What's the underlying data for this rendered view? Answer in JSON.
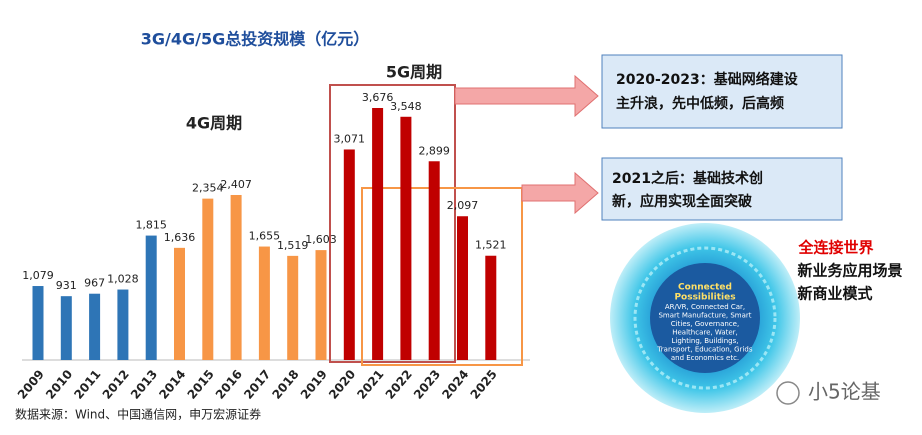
{
  "chart_data": {
    "type": "bar",
    "title": "3G/4G/5G总投资规模（亿元）",
    "categories": [
      "2009",
      "2010",
      "2011",
      "2012",
      "2013",
      "2014",
      "2015",
      "2016",
      "2017",
      "2018",
      "2019",
      "2020",
      "2021",
      "2022",
      "2023",
      "2024",
      "2025"
    ],
    "values": [
      1079,
      931,
      967,
      1028,
      1815,
      1636,
      2354,
      2407,
      1655,
      1519,
      1603,
      3071,
      3676,
      3548,
      2899,
      2097,
      1521
    ],
    "value_labels": [
      "1,079",
      "931",
      "967",
      "1,028",
      "1,815",
      "1,636",
      "2,354",
      "2,407",
      "1,655",
      "1,519",
      "1,603",
      "3,071",
      "3,676",
      "3,548",
      "2,899",
      "2,097",
      "1,521"
    ],
    "colors": [
      "#2e75b6",
      "#2e75b6",
      "#2e75b6",
      "#2e75b6",
      "#2e75b6",
      "#f79646",
      "#f79646",
      "#f79646",
      "#f79646",
      "#f79646",
      "#f79646",
      "#c00000",
      "#c00000",
      "#c00000",
      "#c00000",
      "#c00000",
      "#c00000"
    ],
    "annotations": {
      "label_4g": "4G周期",
      "label_5g": "5G周期",
      "callout_1": [
        "2020-2023：基础网络建设",
        "主升浪，先中低频，后高频"
      ],
      "callout_2": [
        "2021之后：基础技术创",
        "新，应用实现全面突破"
      ],
      "side_text": [
        "全连接世界",
        "新业务应用场景",
        "新商业模式"
      ],
      "circle_title": [
        "Connected",
        "Possibilities"
      ],
      "circle_text": [
        "AR/VR, Connected Car,",
        "Smart Manufacture, Smart",
        "Cities, Governance,",
        "Healthcare, Water,",
        "Lighting, Buildings,",
        "Transport, Education, Grids",
        "and Economics etc."
      ],
      "source": "数据来源：Wind、中国通信网，申万宏源证券",
      "watermark": "小5论基"
    }
  }
}
